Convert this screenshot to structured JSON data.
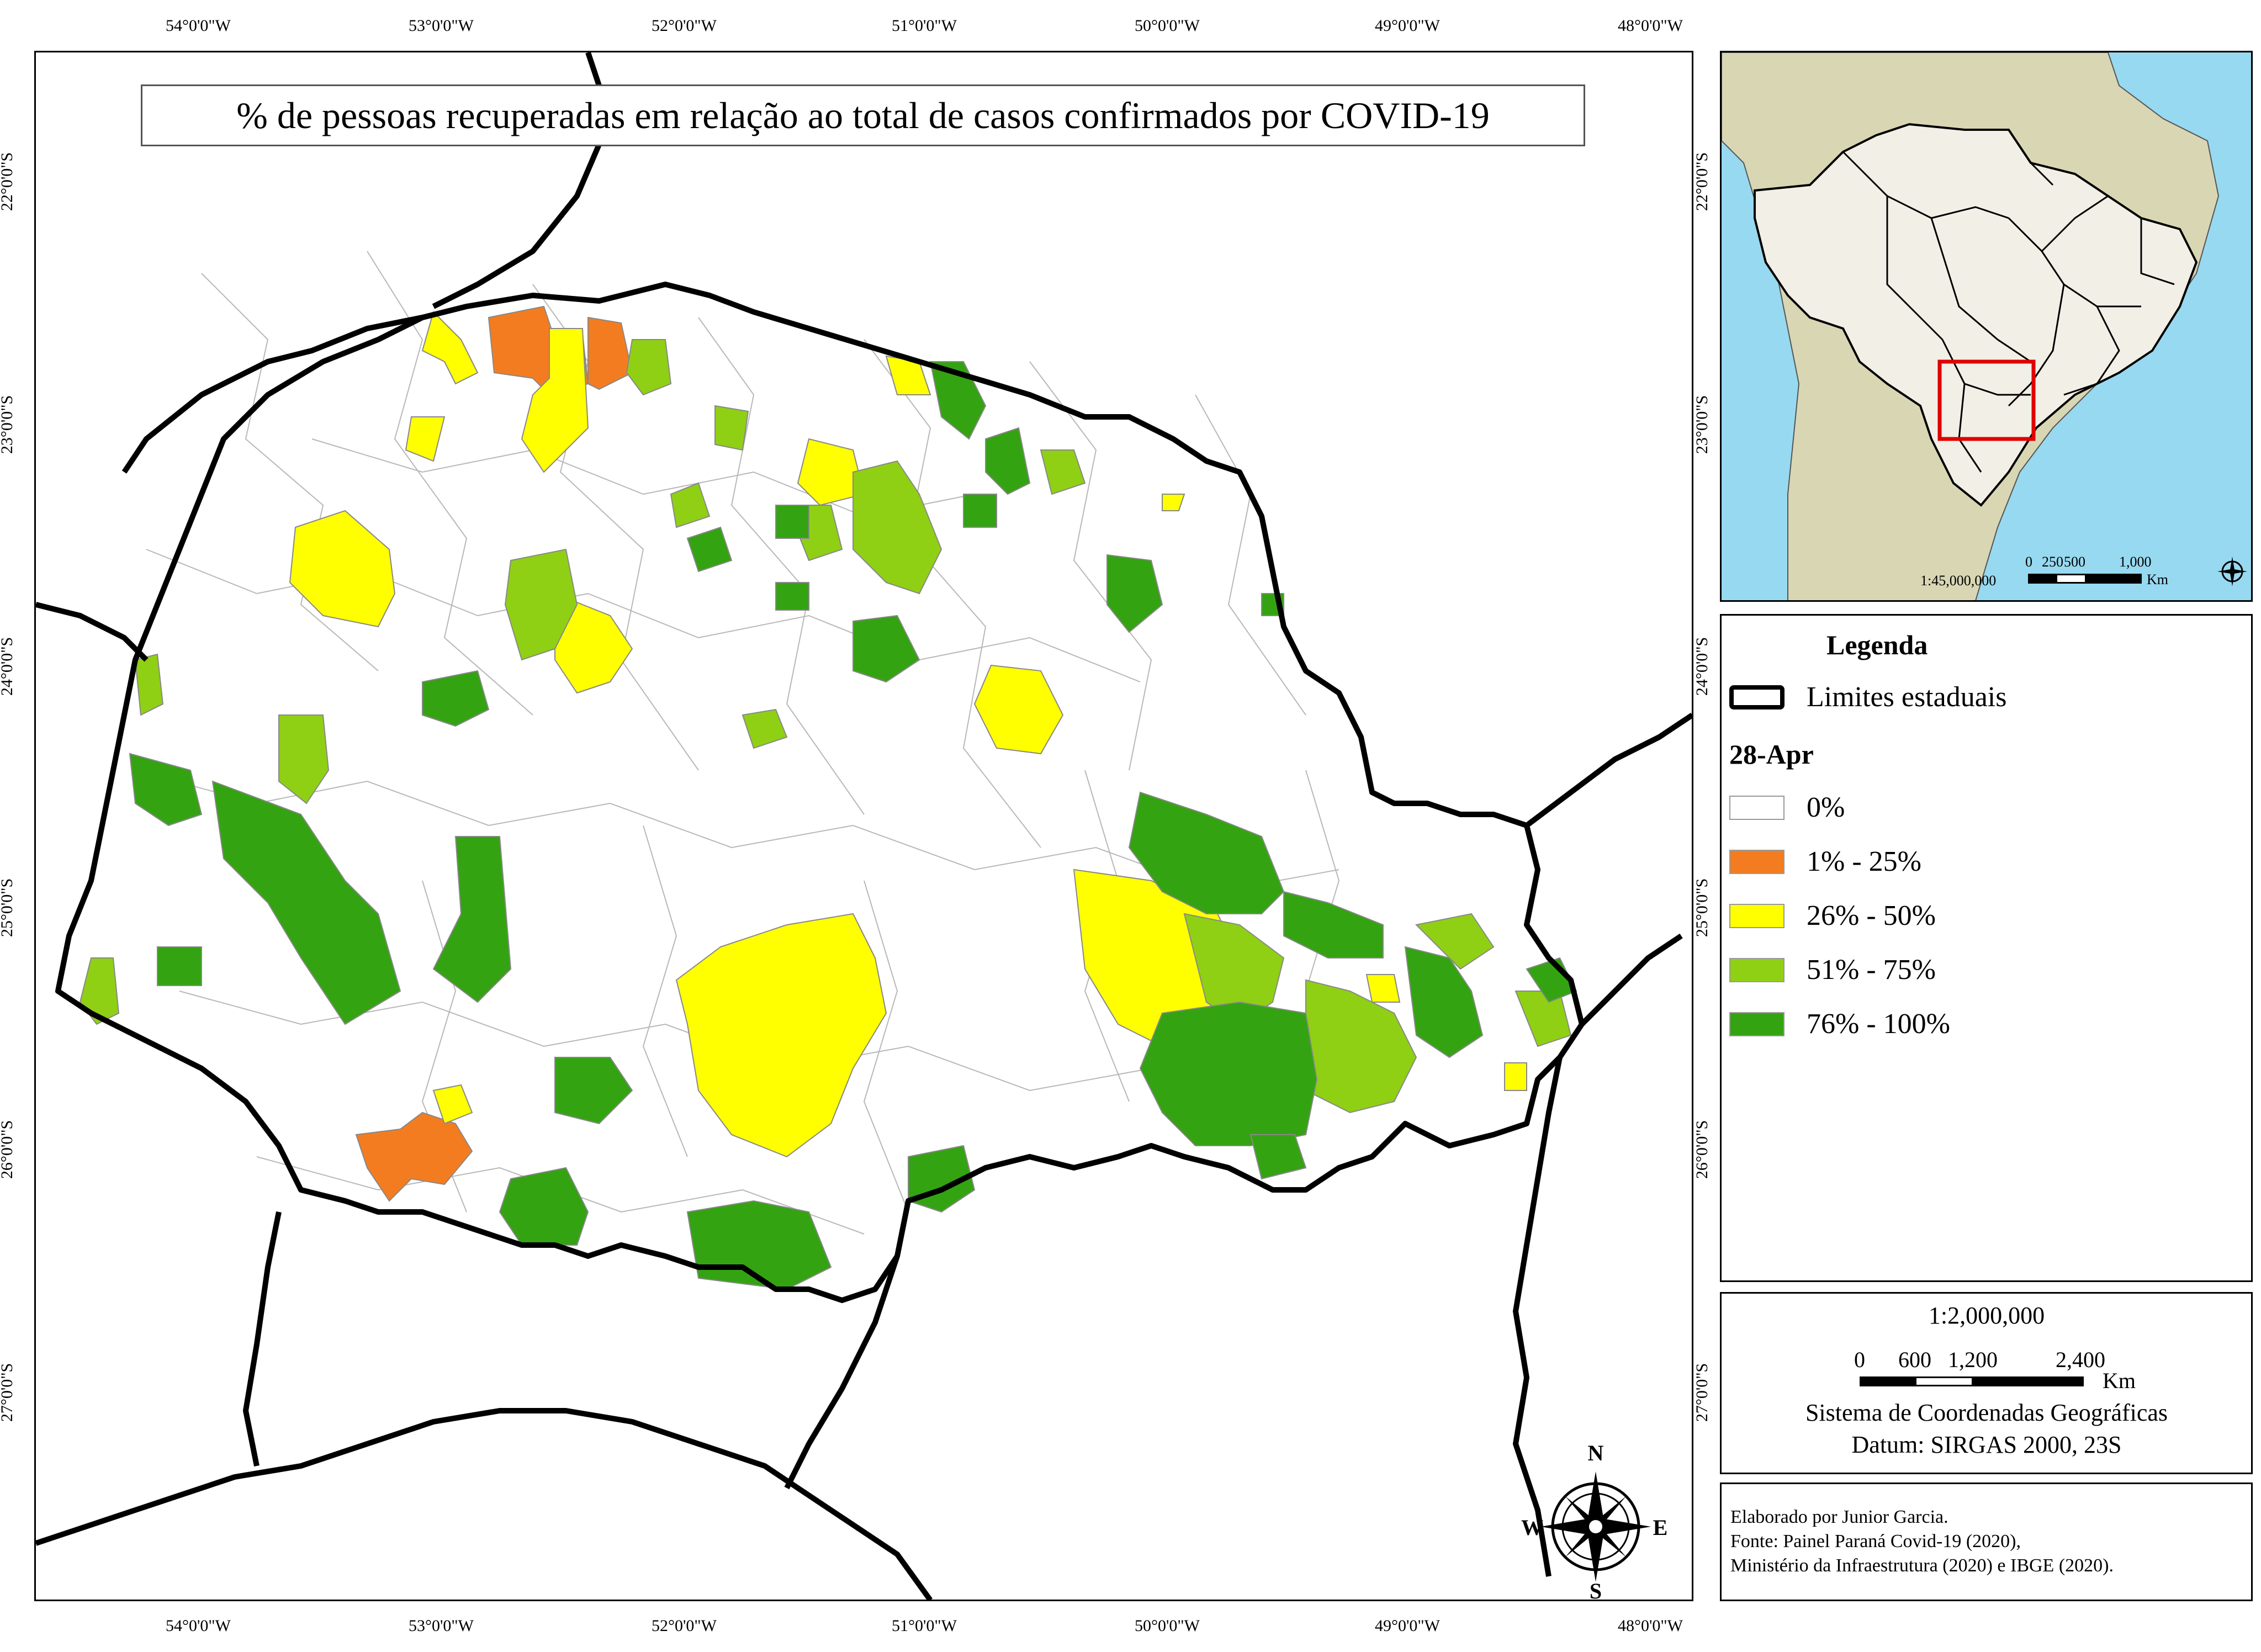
{
  "title": "% de pessoas recuperadas em relação ao total de casos confirmados por COVID-19",
  "axes": {
    "top_longitudes": [
      "54°0'0\"W",
      "53°0'0\"W",
      "52°0'0\"W",
      "51°0'0\"W",
      "50°0'0\"W",
      "49°0'0\"W",
      "48°0'0\"W"
    ],
    "bottom_longitudes": [
      "54°0'0\"W",
      "53°0'0\"W",
      "52°0'0\"W",
      "51°0'0\"W",
      "50°0'0\"W",
      "49°0'0\"W",
      "48°0'0\"W"
    ],
    "left_latitudes": [
      "22°0'0\"S",
      "23°0'0\"S",
      "24°0'0\"S",
      "25°0'0\"S",
      "26°0'0\"S",
      "27°0'0\"S"
    ],
    "right_latitudes": [
      "22°0'0\"S",
      "23°0'0\"S",
      "24°0'0\"S",
      "25°0'0\"S",
      "26°0'0\"S",
      "27°0'0\"S"
    ]
  },
  "legend": {
    "title": "Legenda",
    "state_limits_label": "Limites estaduais",
    "date_label": "28-Apr",
    "classes": [
      {
        "label": "0%",
        "color": "#ffffff"
      },
      {
        "label": "1% - 25%",
        "color": "#f47c20"
      },
      {
        "label": "26% - 50%",
        "color": "#ffff00"
      },
      {
        "label": "51% - 75%",
        "color": "#8fd014"
      },
      {
        "label": "76% - 100%",
        "color": "#34a312"
      }
    ]
  },
  "inset": {
    "scale_text": "1:45,000,000",
    "scale_ticks": [
      "0",
      "250",
      "500",
      "1,000"
    ],
    "scale_unit": "Km"
  },
  "scale_box": {
    "ratio": "1:2,000,000",
    "ticks": [
      "0",
      "600",
      "1,200",
      "2,400"
    ],
    "unit": "Km",
    "crs_line1": "Sistema de Coordenadas Geográficas",
    "crs_line2": "Datum: SIRGAS 2000, 23S"
  },
  "credits": {
    "line1": "Elaborado por Junior Garcia.",
    "line2": "Fonte: Painel Paraná Covid-19 (2020),",
    "line3": "Ministério da Infraestrutura (2020) e IBGE (2020)."
  },
  "compass": {
    "n": "N",
    "s": "S",
    "e": "E",
    "w": "W"
  },
  "colors": {
    "ocean": "#97d9f0",
    "south_america_land": "#d9d6b4",
    "brazil_fill": "#f2efe6",
    "highlight_box": "#e00000"
  }
}
